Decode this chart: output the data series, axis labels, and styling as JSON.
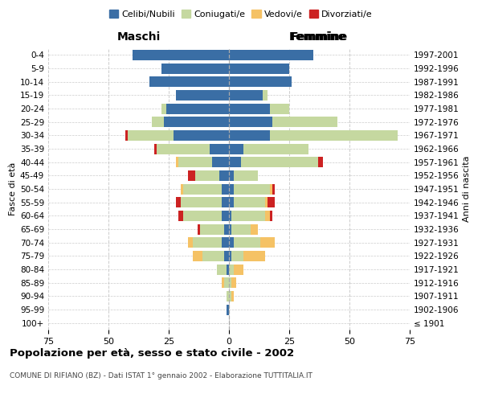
{
  "age_groups": [
    "100+",
    "95-99",
    "90-94",
    "85-89",
    "80-84",
    "75-79",
    "70-74",
    "65-69",
    "60-64",
    "55-59",
    "50-54",
    "45-49",
    "40-44",
    "35-39",
    "30-34",
    "25-29",
    "20-24",
    "15-19",
    "10-14",
    "5-9",
    "0-4"
  ],
  "birth_years": [
    "≤ 1901",
    "1902-1906",
    "1907-1911",
    "1912-1916",
    "1917-1921",
    "1922-1926",
    "1927-1931",
    "1932-1936",
    "1937-1941",
    "1942-1946",
    "1947-1951",
    "1952-1956",
    "1957-1961",
    "1962-1966",
    "1967-1971",
    "1972-1976",
    "1977-1981",
    "1982-1986",
    "1987-1991",
    "1992-1996",
    "1997-2001"
  ],
  "male": {
    "celibi": [
      0,
      1,
      0,
      0,
      1,
      2,
      3,
      2,
      3,
      3,
      3,
      4,
      7,
      8,
      23,
      27,
      26,
      22,
      33,
      28,
      40
    ],
    "coniugati": [
      0,
      0,
      1,
      2,
      4,
      9,
      12,
      10,
      16,
      17,
      16,
      10,
      14,
      22,
      19,
      5,
      2,
      0,
      0,
      0,
      0
    ],
    "vedovi": [
      0,
      0,
      0,
      1,
      0,
      4,
      2,
      0,
      0,
      0,
      1,
      0,
      1,
      0,
      0,
      0,
      0,
      0,
      0,
      0,
      0
    ],
    "divorziati": [
      0,
      0,
      0,
      0,
      0,
      0,
      0,
      1,
      2,
      2,
      0,
      3,
      0,
      1,
      1,
      0,
      0,
      0,
      0,
      0,
      0
    ]
  },
  "female": {
    "nubili": [
      0,
      0,
      0,
      0,
      0,
      1,
      2,
      1,
      1,
      2,
      2,
      2,
      5,
      6,
      17,
      18,
      17,
      14,
      26,
      25,
      35
    ],
    "coniugate": [
      0,
      0,
      1,
      1,
      2,
      5,
      11,
      8,
      14,
      13,
      15,
      10,
      32,
      27,
      53,
      27,
      8,
      2,
      0,
      0,
      0
    ],
    "vedove": [
      0,
      0,
      1,
      2,
      4,
      9,
      6,
      3,
      2,
      1,
      1,
      0,
      0,
      0,
      0,
      0,
      0,
      0,
      0,
      0,
      0
    ],
    "divorziate": [
      0,
      0,
      0,
      0,
      0,
      0,
      0,
      0,
      1,
      3,
      1,
      0,
      2,
      0,
      0,
      0,
      0,
      0,
      0,
      0,
      0
    ]
  },
  "colors": {
    "celibi_nubili": "#3a6ea5",
    "coniugati": "#c5d8a0",
    "vedovi": "#f5c265",
    "divorziati": "#cc2222"
  },
  "xlim": 75,
  "title": "Popolazione per età, sesso e stato civile - 2002",
  "subtitle": "COMUNE DI RIFIANO (BZ) - Dati ISTAT 1° gennaio 2002 - Elaborazione TUTTITALIA.IT",
  "ylabel_left": "Fasce di età",
  "ylabel_right": "Anni di nascita",
  "xlabel_left": "Maschi",
  "xlabel_right": "Femmine",
  "bg_color": "#ffffff",
  "grid_color": "#cccccc"
}
